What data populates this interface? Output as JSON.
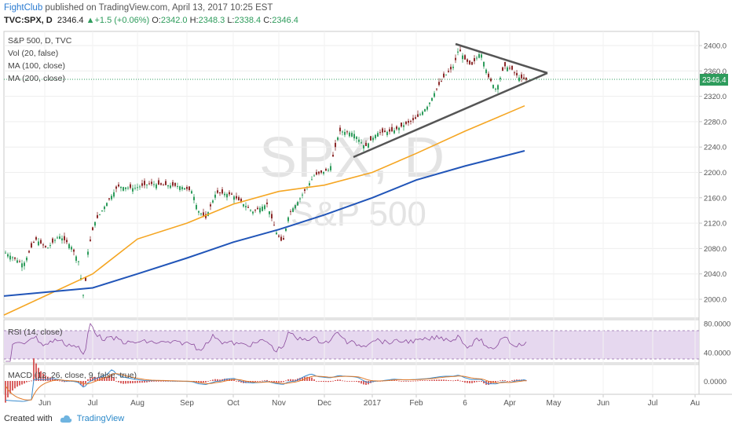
{
  "header": {
    "user": "FightClub",
    "published": "published on TradingView.com, April 13, 2017 10:25 EST",
    "symbol": "TVC:SPX, D",
    "last": "2346.4",
    "arrow": "▲",
    "change": "+1.5 (+0.06%)",
    "o_label": "O:",
    "o": "2342.0",
    "h_label": "H:",
    "h": "2348.3",
    "l_label": "L:",
    "l": "2338.4",
    "c_label": "C:",
    "c": "2346.4"
  },
  "legend": {
    "title": "S&P 500, D, TVC",
    "vol": "Vol (20, false)",
    "ma100": "MA (100, close)",
    "ma200": "MA (200, close)"
  },
  "watermark": {
    "big": "SPX, D",
    "small": "S&P 500"
  },
  "price_axis": {
    "ticks": [
      "2400.0",
      "2360.0",
      "2320.0",
      "2280.0",
      "2240.0",
      "2200.0",
      "2160.0",
      "2120.0",
      "2080.0",
      "2040.0",
      "2000.0"
    ],
    "last_label": "2346.4"
  },
  "rsi": {
    "label": "RSI (14, close)",
    "ticks": [
      "80.0000",
      "40.0000"
    ]
  },
  "macd": {
    "label": "MACD (12, 26, close, 9, false, true)",
    "ticks": [
      "0.0000"
    ]
  },
  "time_axis": [
    "Jun",
    "Jul",
    "Aug",
    "Sep",
    "Oct",
    "Nov",
    "Dec",
    "2017",
    "Feb",
    "6",
    "Apr",
    "May",
    "Jun",
    "Jul",
    "Au"
  ],
  "footer": {
    "created": "Created with",
    "brand": "TradingView"
  },
  "colors": {
    "up": "#2e9c5c",
    "down": "#8b2a2a",
    "ma100": "#f5a623",
    "ma200": "#2155b8",
    "rsi": "#8a4a9c",
    "trend": "#555555"
  },
  "chart_data": {
    "type": "line",
    "title": "S&P 500, D, TVC",
    "series": [
      {
        "name": "MA (100, close)",
        "x": [
          "Jun",
          "Jul",
          "Aug",
          "Sep",
          "Oct",
          "Nov",
          "Dec",
          "2017",
          "Feb",
          "6",
          "Apr"
        ],
        "values": [
          2005,
          2040,
          2095,
          2120,
          2150,
          2170,
          2180,
          2200,
          2230,
          2265,
          2295
        ]
      },
      {
        "name": "MA (200, close)",
        "x": [
          "Jun",
          "Jul",
          "Aug",
          "Sep",
          "Oct",
          "Nov",
          "Dec",
          "2017",
          "Feb",
          "6",
          "Apr"
        ],
        "values": [
          2011,
          2018,
          2040,
          2065,
          2090,
          2110,
          2133,
          2160,
          2188,
          2210,
          2228
        ]
      }
    ],
    "ylim": [
      1990,
      2412
    ],
    "grid": true,
    "legend": "top-left"
  }
}
